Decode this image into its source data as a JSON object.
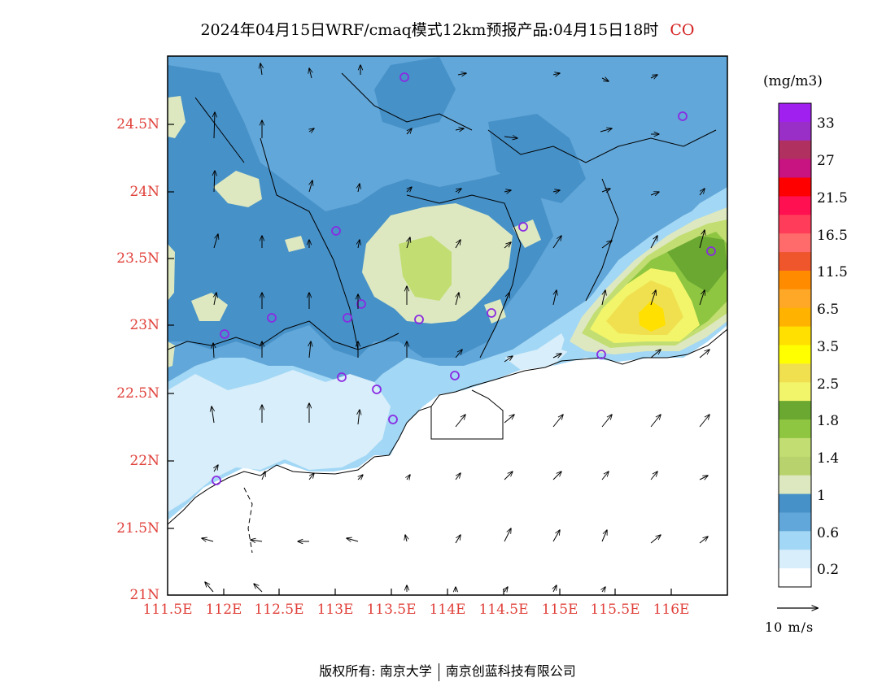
{
  "title": {
    "main": "2024年04月15日WRF/cmaq模式12km预报产品:04月15日18时",
    "species": "CO"
  },
  "lat_labels": [
    "24.5N",
    "24N",
    "23.5N",
    "23N",
    "22.5N",
    "22N",
    "21.5N",
    "21N"
  ],
  "lon_labels": [
    "111.5E",
    "112E",
    "112.5E",
    "113E",
    "113.5E",
    "114E",
    "114.5E",
    "115E",
    "115.5E",
    "116E"
  ],
  "colorbar": {
    "unit": "(mg/m3)",
    "labels": [
      "33",
      "27",
      "21.5",
      "16.5",
      "11.5",
      "6.5",
      "3.5",
      "2.5",
      "1.8",
      "1.4",
      "1",
      "0.6",
      "0.2"
    ],
    "colors": [
      "#a020f0",
      "#9a2fc8",
      "#b03060",
      "#c81480",
      "#ff0000",
      "#ff1050",
      "#ff3d5a",
      "#ff6a6a",
      "#f0562c",
      "#ff8c00",
      "#ffa726",
      "#ffb300",
      "#ffe000",
      "#ffff00",
      "#f0e050",
      "#f2f569",
      "#6aa832",
      "#8ec641",
      "#c2de72",
      "#b8d26e",
      "#dde8c0",
      "#4691c8",
      "#62a7d9",
      "#a2d7f5",
      "#d8eefa",
      "#ffffff"
    ]
  },
  "wind_reference": {
    "label": "10 m/s"
  },
  "footer": {
    "left": "版权所有: 南京大学",
    "right": "南京创蓝科技有限公司"
  }
}
